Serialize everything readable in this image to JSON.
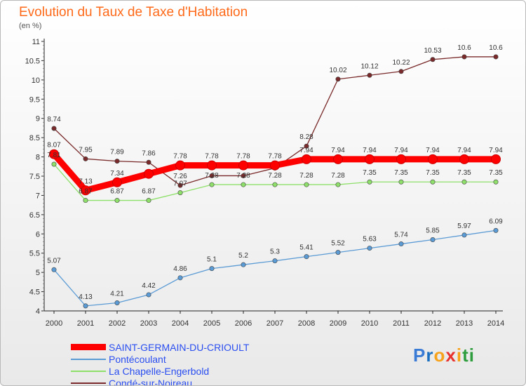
{
  "header": {
    "title": "Evolution du Taux de Taxe d'Habitation",
    "subtitle": "(en %)"
  },
  "logo": {
    "letters": [
      "P",
      "r",
      "o",
      "x",
      "i",
      "t",
      "i"
    ],
    "colors": [
      "#3a7bd5",
      "#1a6fc0",
      "#f7a21b",
      "#e8322d",
      "#f7a21b",
      "#2e9d3e",
      "#2e9d3e"
    ]
  },
  "chart_data": {
    "type": "line",
    "title": "Evolution du Taux de Taxe d'Habitation",
    "ylabel": "(en %)",
    "x": [
      "2000",
      "2001",
      "2002",
      "2003",
      "2004",
      "2005",
      "2006",
      "2007",
      "2008",
      "2009",
      "2010",
      "2011",
      "2012",
      "2013",
      "2014"
    ],
    "ylim": [
      4,
      11
    ],
    "yticks": [
      4,
      4.5,
      5,
      5.5,
      6,
      6.5,
      7,
      7.5,
      8,
      8.5,
      9,
      9.5,
      10,
      10.5,
      11
    ],
    "ytick_labels": [
      "4",
      "4.5",
      "5",
      "5.5",
      "6",
      "6.5",
      "7",
      "7.5",
      "8",
      "8.5",
      "9",
      "9.5",
      "10",
      "10.5",
      "11"
    ],
    "grid": false,
    "legend": "bottom-left",
    "series": [
      {
        "name": "SAINT-GERMAIN-DU-CRIOULT",
        "color": "#ff0000",
        "values": [
          8.07,
          7.13,
          7.34,
          7.56,
          7.78,
          7.78,
          7.78,
          7.78,
          7.94,
          7.94,
          7.94,
          7.94,
          7.94,
          7.94,
          7.94
        ],
        "labels": [
          "8.07",
          "7.13",
          "7.34",
          "",
          "7.78",
          "7.78",
          "7.78",
          "7.78",
          "7.94",
          "7.94",
          "7.94",
          "7.94",
          "7.94",
          "7.94",
          "7.94"
        ]
      },
      {
        "name": "Pontécoulant",
        "color": "#5b9bd5",
        "values": [
          5.07,
          4.13,
          4.21,
          4.42,
          4.86,
          5.1,
          5.2,
          5.3,
          5.41,
          5.52,
          5.63,
          5.74,
          5.85,
          5.97,
          6.09
        ],
        "labels": [
          "5.07",
          "4.13",
          "4.21",
          "4.42",
          "4.86",
          "5.1",
          "5.2",
          "5.3",
          "5.41",
          "5.52",
          "5.63",
          "5.74",
          "5.85",
          "5.97",
          "6.09"
        ]
      },
      {
        "name": "La Chapelle-Engerbold",
        "color": "#8ee06a",
        "values": [
          7.81,
          6.87,
          6.87,
          6.87,
          7.07,
          7.28,
          7.28,
          7.28,
          7.28,
          7.28,
          7.35,
          7.35,
          7.35,
          7.35,
          7.35
        ],
        "labels": [
          "7.81",
          "6.87",
          "6.87",
          "6.87",
          "7.07",
          "7.28",
          "7.28",
          "7.28",
          "7.28",
          "7.28",
          "7.35",
          "7.35",
          "7.35",
          "7.35",
          "7.35"
        ]
      },
      {
        "name": "Condé-sur-Noireau",
        "color": "#7a2a2a",
        "values": [
          8.74,
          7.95,
          7.89,
          7.86,
          7.26,
          7.51,
          7.51,
          7.71,
          8.28,
          10.02,
          10.12,
          10.22,
          10.53,
          10.6,
          10.6
        ],
        "labels": [
          "8.74",
          "7.95",
          "7.89",
          "7.86",
          "7.26",
          "",
          "",
          "",
          "8.28",
          "10.02",
          "10.12",
          "10.22",
          "10.53",
          "10.6",
          "10.6"
        ]
      }
    ]
  }
}
